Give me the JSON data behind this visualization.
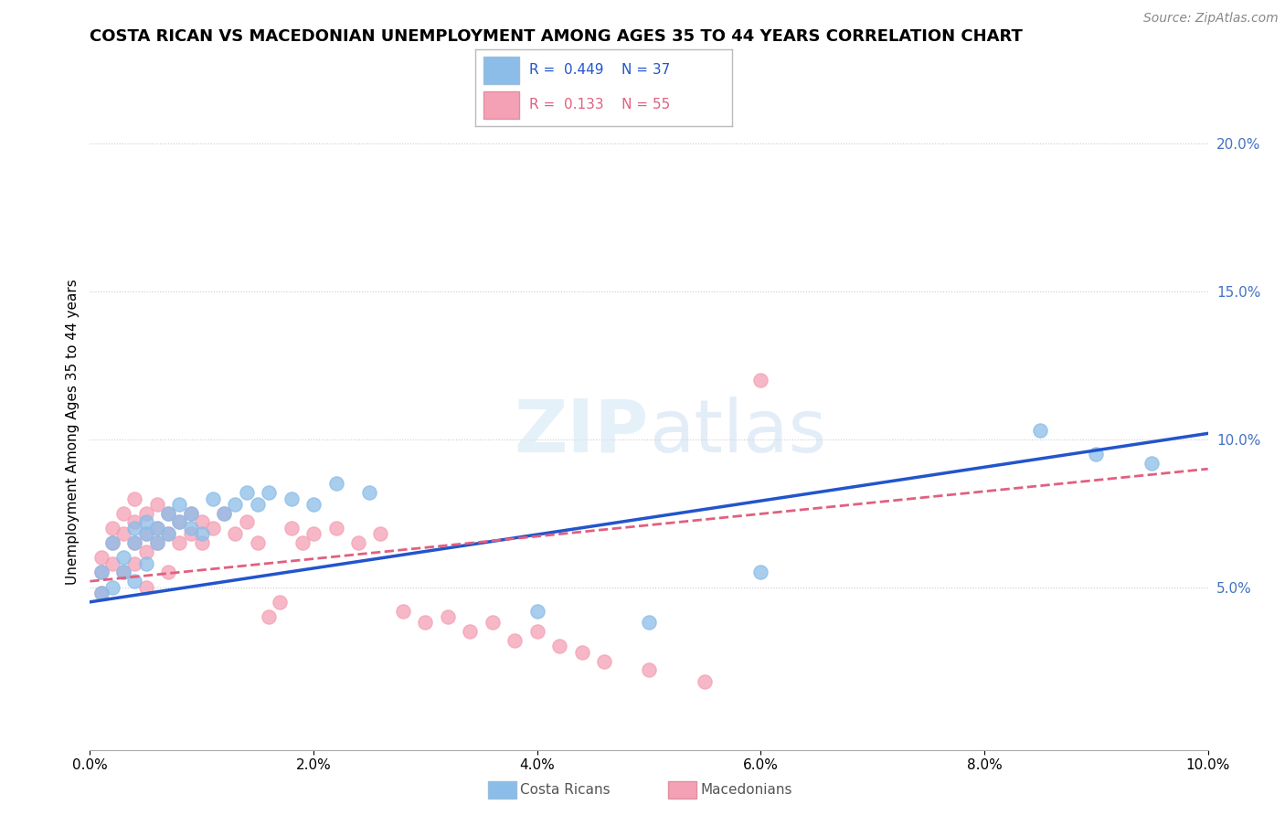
{
  "title": "COSTA RICAN VS MACEDONIAN UNEMPLOYMENT AMONG AGES 35 TO 44 YEARS CORRELATION CHART",
  "source": "Source: ZipAtlas.com",
  "ylabel": "Unemployment Among Ages 35 to 44 years",
  "xlim": [
    0.0,
    0.1
  ],
  "ylim": [
    -0.005,
    0.21
  ],
  "xticks": [
    0.0,
    0.02,
    0.04,
    0.06,
    0.08,
    0.1
  ],
  "yticks": [
    0.05,
    0.1,
    0.15,
    0.2
  ],
  "ytick_labels": [
    "5.0%",
    "10.0%",
    "15.0%",
    "20.0%"
  ],
  "xtick_labels": [
    "0.0%",
    "2.0%",
    "4.0%",
    "6.0%",
    "8.0%",
    "10.0%"
  ],
  "costa_rica_color": "#8bbde8",
  "macedonia_color": "#f4a0b5",
  "costa_rica_line_color": "#2255cc",
  "macedonia_line_color": "#e06080",
  "costa_rica_R": 0.449,
  "costa_rica_N": 37,
  "macedonia_R": 0.133,
  "macedonia_N": 55,
  "legend_label_cr": "Costa Ricans",
  "legend_label_mac": "Macedonians",
  "grid_color": "#cccccc",
  "background_color": "#ffffff",
  "title_fontsize": 13,
  "axis_label_fontsize": 11,
  "tick_fontsize": 11,
  "source_fontsize": 10,
  "costa_ricans_x": [
    0.001,
    0.001,
    0.002,
    0.002,
    0.003,
    0.003,
    0.004,
    0.004,
    0.004,
    0.005,
    0.005,
    0.005,
    0.006,
    0.006,
    0.007,
    0.007,
    0.008,
    0.008,
    0.009,
    0.009,
    0.01,
    0.011,
    0.012,
    0.013,
    0.014,
    0.015,
    0.016,
    0.018,
    0.02,
    0.022,
    0.025,
    0.04,
    0.05,
    0.06,
    0.085,
    0.09,
    0.095
  ],
  "costa_ricans_y": [
    0.055,
    0.048,
    0.065,
    0.05,
    0.06,
    0.055,
    0.07,
    0.052,
    0.065,
    0.058,
    0.072,
    0.068,
    0.065,
    0.07,
    0.075,
    0.068,
    0.072,
    0.078,
    0.07,
    0.075,
    0.068,
    0.08,
    0.075,
    0.078,
    0.082,
    0.078,
    0.082,
    0.08,
    0.078,
    0.085,
    0.082,
    0.042,
    0.038,
    0.055,
    0.103,
    0.095,
    0.092
  ],
  "macedonians_x": [
    0.001,
    0.001,
    0.001,
    0.002,
    0.002,
    0.002,
    0.003,
    0.003,
    0.003,
    0.004,
    0.004,
    0.004,
    0.004,
    0.005,
    0.005,
    0.005,
    0.005,
    0.006,
    0.006,
    0.006,
    0.007,
    0.007,
    0.007,
    0.008,
    0.008,
    0.009,
    0.009,
    0.01,
    0.01,
    0.011,
    0.012,
    0.013,
    0.014,
    0.015,
    0.016,
    0.017,
    0.018,
    0.019,
    0.02,
    0.022,
    0.024,
    0.026,
    0.028,
    0.03,
    0.032,
    0.034,
    0.036,
    0.038,
    0.04,
    0.042,
    0.044,
    0.046,
    0.05,
    0.055,
    0.06
  ],
  "macedonians_y": [
    0.06,
    0.055,
    0.048,
    0.07,
    0.065,
    0.058,
    0.075,
    0.068,
    0.055,
    0.072,
    0.065,
    0.058,
    0.08,
    0.068,
    0.075,
    0.062,
    0.05,
    0.07,
    0.065,
    0.078,
    0.075,
    0.068,
    0.055,
    0.072,
    0.065,
    0.075,
    0.068,
    0.072,
    0.065,
    0.07,
    0.075,
    0.068,
    0.072,
    0.065,
    0.04,
    0.045,
    0.07,
    0.065,
    0.068,
    0.07,
    0.065,
    0.068,
    0.042,
    0.038,
    0.04,
    0.035,
    0.038,
    0.032,
    0.035,
    0.03,
    0.028,
    0.025,
    0.022,
    0.018,
    0.12
  ]
}
